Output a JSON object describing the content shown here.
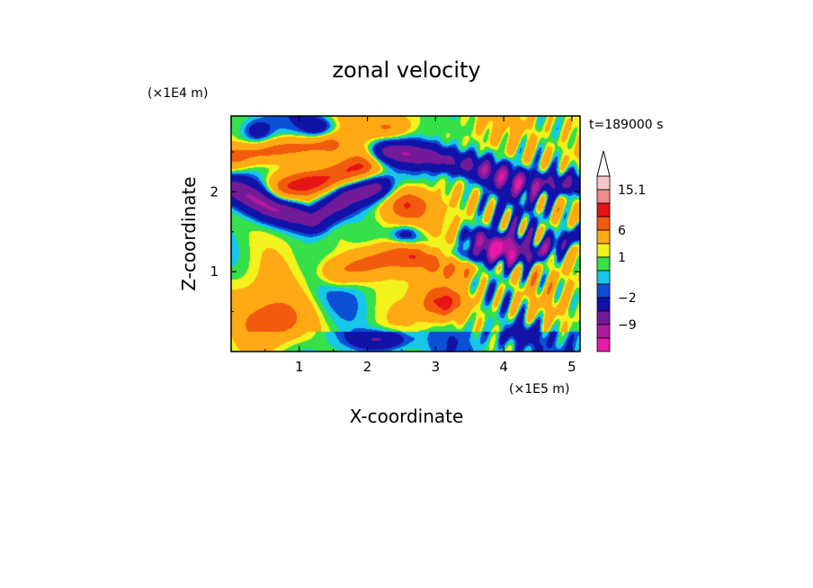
{
  "chart_data": {
    "type": "heatmap",
    "title": "zonal velocity",
    "xlabel": "X-coordinate",
    "ylabel": "Z-coordinate",
    "x_scale_note": "(×1E5 m)",
    "y_scale_note": "(×1E4 m)",
    "time_label": "t=189000 s",
    "xlim": [
      0,
      5.12
    ],
    "ylim": [
      0,
      2.95
    ],
    "x_ticks": [
      1,
      2,
      3,
      4,
      5
    ],
    "y_ticks": [
      1,
      2
    ],
    "grid": false,
    "colorbar": {
      "placement": "right",
      "levels": [
        -15.1,
        -12,
        -9,
        -6,
        -2,
        -1,
        0,
        1,
        2,
        6,
        9,
        12,
        15.1
      ],
      "colors": [
        "#e61aa6",
        "#b3199e",
        "#731a99",
        "#1212a8",
        "#0b4fd6",
        "#16c7e8",
        "#35e04a",
        "#f2f21c",
        "#ffaa14",
        "#f25b0d",
        "#e61414",
        "#f08c8c",
        "#f8c6c6"
      ],
      "labels": [
        {
          "value": 15.1,
          "text": "15.1"
        },
        {
          "value": 6,
          "text": "6"
        },
        {
          "value": 1,
          "text": "1"
        },
        {
          "value": -2,
          "text": "−2"
        },
        {
          "value": -9,
          "text": "−9"
        }
      ]
    },
    "field_features": [
      {
        "type": "band",
        "sign": -1,
        "amp": 10,
        "points": [
          [
            0,
            2.05
          ],
          [
            0.6,
            1.8
          ],
          [
            1.2,
            1.65
          ],
          [
            1.7,
            1.95
          ],
          [
            2.1,
            2.05
          ]
        ],
        "width": 0.12
      },
      {
        "type": "band",
        "sign": -1,
        "amp": 8,
        "points": [
          [
            2.3,
            2.5
          ],
          [
            2.9,
            2.45
          ],
          [
            3.6,
            2.3
          ],
          [
            4.3,
            2.1
          ],
          [
            5.12,
            2.1
          ]
        ],
        "width": 0.11
      },
      {
        "type": "band",
        "sign": -1,
        "amp": 8,
        "points": [
          [
            2.6,
            1.45
          ],
          [
            3.2,
            1.2
          ],
          [
            3.7,
            1.2
          ],
          [
            4.1,
            1.35
          ]
        ],
        "width": 0.1
      },
      {
        "type": "band",
        "sign": -1,
        "amp": 7,
        "points": [
          [
            3.6,
            1.45
          ],
          [
            4.2,
            1.15
          ],
          [
            4.7,
            1.3
          ],
          [
            5.12,
            1.5
          ]
        ],
        "width": 0.08
      },
      {
        "type": "band",
        "sign": 1,
        "amp": 8,
        "points": [
          [
            0.8,
            2.05
          ],
          [
            1.4,
            2.15
          ],
          [
            1.9,
            2.3
          ]
        ],
        "width": 0.12
      },
      {
        "type": "band",
        "sign": 1,
        "amp": 7,
        "points": [
          [
            0.1,
            2.45
          ],
          [
            0.8,
            2.55
          ],
          [
            1.4,
            2.6
          ]
        ],
        "width": 0.1
      },
      {
        "type": "band",
        "sign": 1,
        "amp": 7,
        "points": [
          [
            1.6,
            1.0
          ],
          [
            2.2,
            1.15
          ],
          [
            2.8,
            1.25
          ],
          [
            3.4,
            1.1
          ]
        ],
        "width": 0.13
      },
      {
        "type": "blob",
        "sign": 1,
        "amp": 9,
        "x": 3.1,
        "y": 0.6,
        "rx": 0.35,
        "ry": 0.2
      },
      {
        "type": "blob",
        "sign": 1,
        "amp": 7,
        "x": 2.6,
        "y": 1.85,
        "rx": 0.35,
        "ry": 0.2
      },
      {
        "type": "blob",
        "sign": 1,
        "amp": 6,
        "x": 2.3,
        "y": 2.8,
        "rx": 0.3,
        "ry": 0.15
      },
      {
        "type": "blob",
        "sign": -1,
        "amp": 6,
        "x": 2.2,
        "y": 0.15,
        "rx": 0.4,
        "ry": 0.12
      },
      {
        "type": "blob",
        "sign": -1,
        "amp": 5,
        "x": 1.3,
        "y": 2.8,
        "rx": 0.25,
        "ry": 0.15
      },
      {
        "type": "blob",
        "sign": -1,
        "amp": 4,
        "x": 0.4,
        "y": 2.75,
        "rx": 0.2,
        "ry": 0.15
      },
      {
        "type": "blob",
        "sign": 1,
        "amp": 5,
        "x": 0.7,
        "y": 0.4,
        "rx": 0.5,
        "ry": 0.3
      },
      {
        "type": "blob",
        "sign": -1,
        "amp": 4,
        "x": 4.3,
        "y": 0.25,
        "rx": 0.3,
        "ry": 0.15
      },
      {
        "type": "waves",
        "amp": 6,
        "x": 4.3,
        "y": 1.5,
        "rx": 0.9,
        "ry": 1.4
      }
    ]
  }
}
